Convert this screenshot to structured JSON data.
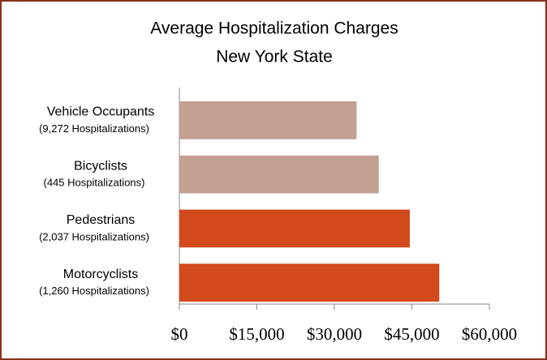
{
  "chart_data": {
    "type": "bar",
    "orientation": "horizontal",
    "title": [
      "Average Hospitalization Charges",
      "New York State"
    ],
    "categories": [
      "Vehicle Occupants",
      "Bicyclists",
      "Pedestrians",
      "Motorcyclists"
    ],
    "category_subtitles": [
      "(9,272 Hospitalizations)",
      "(445 Hospitalizations)",
      "(2,037 Hospitalizations)",
      "(1,260 Hospitalizations)"
    ],
    "values": [
      34300,
      38600,
      44600,
      50300
    ],
    "colors": [
      "#c4a093",
      "#c4a093",
      "#d24a1c",
      "#d24a1c"
    ],
    "xlim": [
      0,
      60000
    ],
    "xticks": [
      {
        "value": 0,
        "label": "$0"
      },
      {
        "value": 15000,
        "label": "$15,000"
      },
      {
        "value": 30000,
        "label": "$30,000"
      },
      {
        "value": 45000,
        "label": "$45,000"
      },
      {
        "value": 60000,
        "label": "$60,000"
      }
    ],
    "grid": false
  }
}
